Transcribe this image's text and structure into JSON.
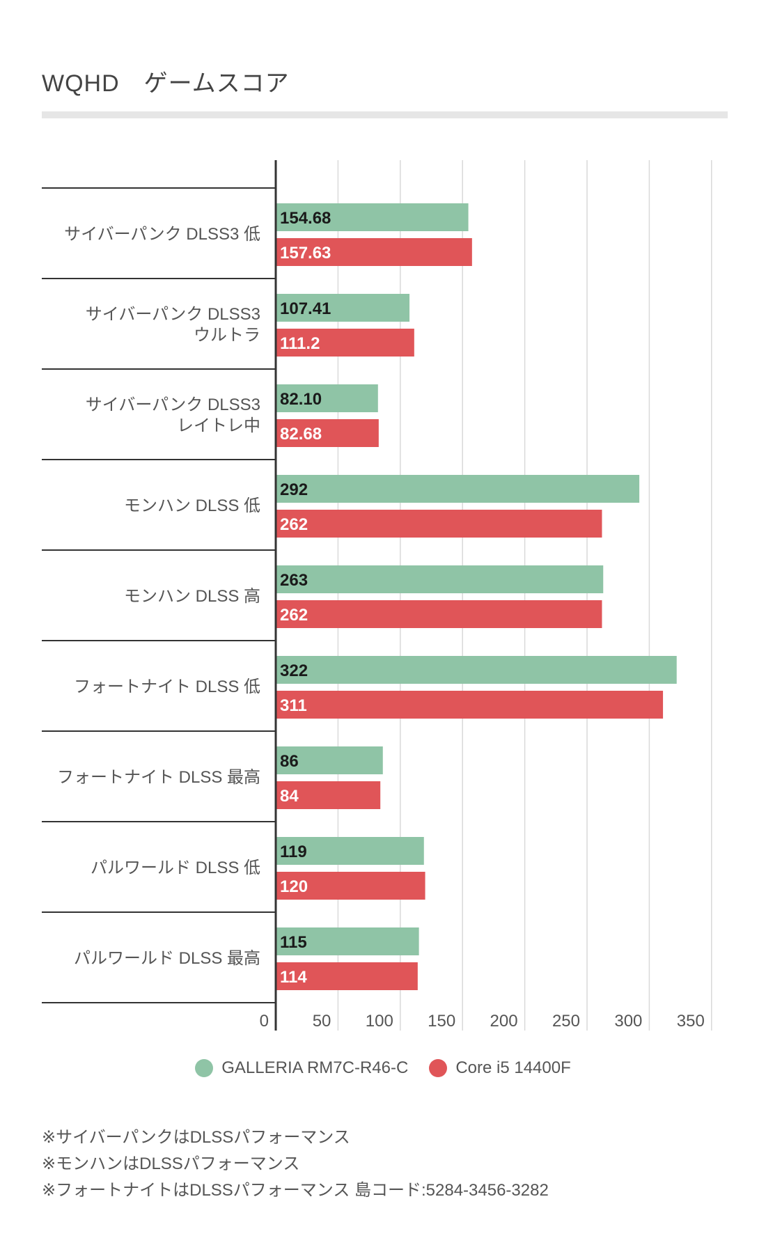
{
  "chart_data": {
    "type": "bar",
    "orientation": "horizontal",
    "title": "WQHD　ゲームスコア",
    "categories": [
      [
        "サイバーパンク DLSS3 低"
      ],
      [
        "サイバーパンク DLSS3",
        "ウルトラ"
      ],
      [
        "サイバーパンク DLSS3",
        "レイトレ中"
      ],
      [
        "モンハン DLSS 低"
      ],
      [
        "モンハン DLSS 高"
      ],
      [
        "フォートナイト DLSS 低"
      ],
      [
        "フォートナイト DLSS 最高"
      ],
      [
        "パルワールド DLSS 低"
      ],
      [
        "パルワールド DLSS 最高"
      ]
    ],
    "series": [
      {
        "name": "GALLERIA RM7C-R46-C",
        "color": "#8fc4a6",
        "label_color": "#1a1a1a",
        "values": [
          154.68,
          107.41,
          82.1,
          292,
          263,
          322,
          86,
          119,
          115
        ],
        "value_labels": [
          "154.68",
          "107.41",
          "82.10",
          "292",
          "263",
          "322",
          "86",
          "119",
          "115"
        ]
      },
      {
        "name": "Core i5 14400F",
        "color": "#e05558",
        "label_color": "#ffffff",
        "values": [
          157.63,
          111.2,
          82.68,
          262,
          262,
          311,
          84,
          120,
          114
        ],
        "value_labels": [
          "157.63",
          "111.2",
          "82.68",
          "262",
          "262",
          "311",
          "84",
          "120",
          "114"
        ]
      }
    ],
    "xlim": [
      0,
      350
    ],
    "xticks": [
      0,
      50,
      100,
      150,
      200,
      250,
      300,
      350
    ],
    "grid": true,
    "legend": "bottom"
  },
  "notes": [
    "※サイバーパンクはDLSSパフォーマンス",
    "※モンハンはDLSSパフォーマンス",
    "※フォートナイトはDLSSパフォーマンス 島コード:5284-3456-3282"
  ]
}
